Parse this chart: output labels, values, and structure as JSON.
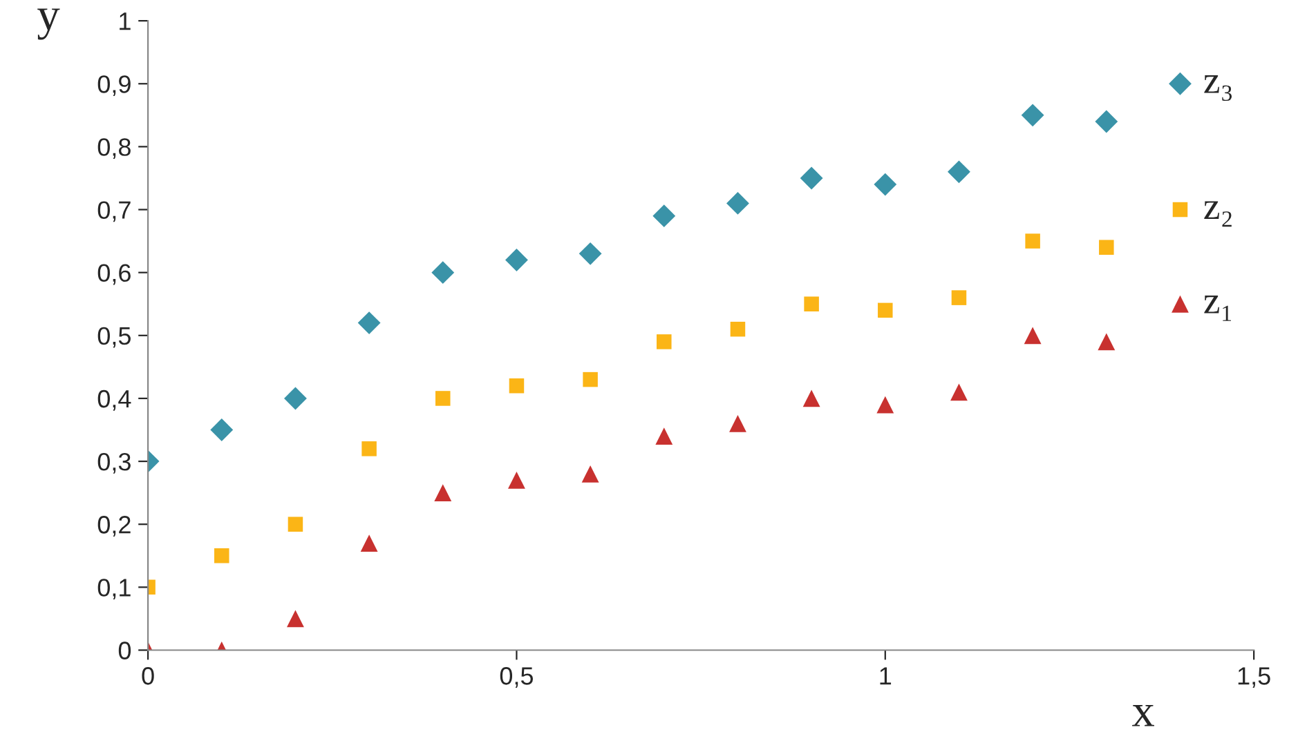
{
  "chart_data": {
    "type": "scatter",
    "xlabel": "x",
    "ylabel": "y",
    "xlim": [
      0,
      1.5
    ],
    "xticks": [
      0,
      {
        "value": 0.5,
        "label": "0,5"
      },
      1,
      {
        "value": 1.5,
        "label": "1,5"
      }
    ],
    "ylim": [
      0,
      1
    ],
    "yticks": [
      0,
      {
        "value": 0.1,
        "label": "0,1"
      },
      {
        "value": 0.2,
        "label": "0,2"
      },
      {
        "value": 0.3,
        "label": "0,3"
      },
      {
        "value": 0.4,
        "label": "0,4"
      },
      {
        "value": 0.5,
        "label": "0,5"
      },
      {
        "value": 0.6,
        "label": "0,6"
      },
      {
        "value": 0.7,
        "label": "0,7"
      },
      {
        "value": 0.8,
        "label": "0,8"
      },
      {
        "value": 0.9,
        "label": "0,9"
      },
      1
    ],
    "grid": false,
    "legend": false,
    "x": [
      0,
      0.1,
      0.2,
      0.3,
      0.4,
      0.5,
      0.6,
      0.7,
      0.8,
      0.9,
      1.0,
      1.1,
      1.2,
      1.3,
      1.4
    ],
    "series": [
      {
        "name": "z₃",
        "color": "#3a93a8",
        "marker": "diamond",
        "values": [
          0.3,
          0.35,
          0.4,
          0.52,
          0.6,
          0.62,
          0.63,
          0.69,
          0.71,
          0.75,
          0.74,
          0.76,
          0.85,
          0.84,
          0.9
        ]
      },
      {
        "name": "z₂",
        "color": "#fbb516",
        "marker": "square",
        "values": [
          0.1,
          0.15,
          0.2,
          0.32,
          0.4,
          0.42,
          0.43,
          0.49,
          0.51,
          0.55,
          0.54,
          0.56,
          0.65,
          0.64,
          0.7
        ]
      },
      {
        "name": "z₁",
        "color": "#c8312f",
        "marker": "triangle",
        "values": [
          0.0,
          0.0,
          0.05,
          0.17,
          0.25,
          0.27,
          0.28,
          0.34,
          0.36,
          0.4,
          0.39,
          0.41,
          0.5,
          0.49,
          0.55
        ]
      }
    ]
  }
}
